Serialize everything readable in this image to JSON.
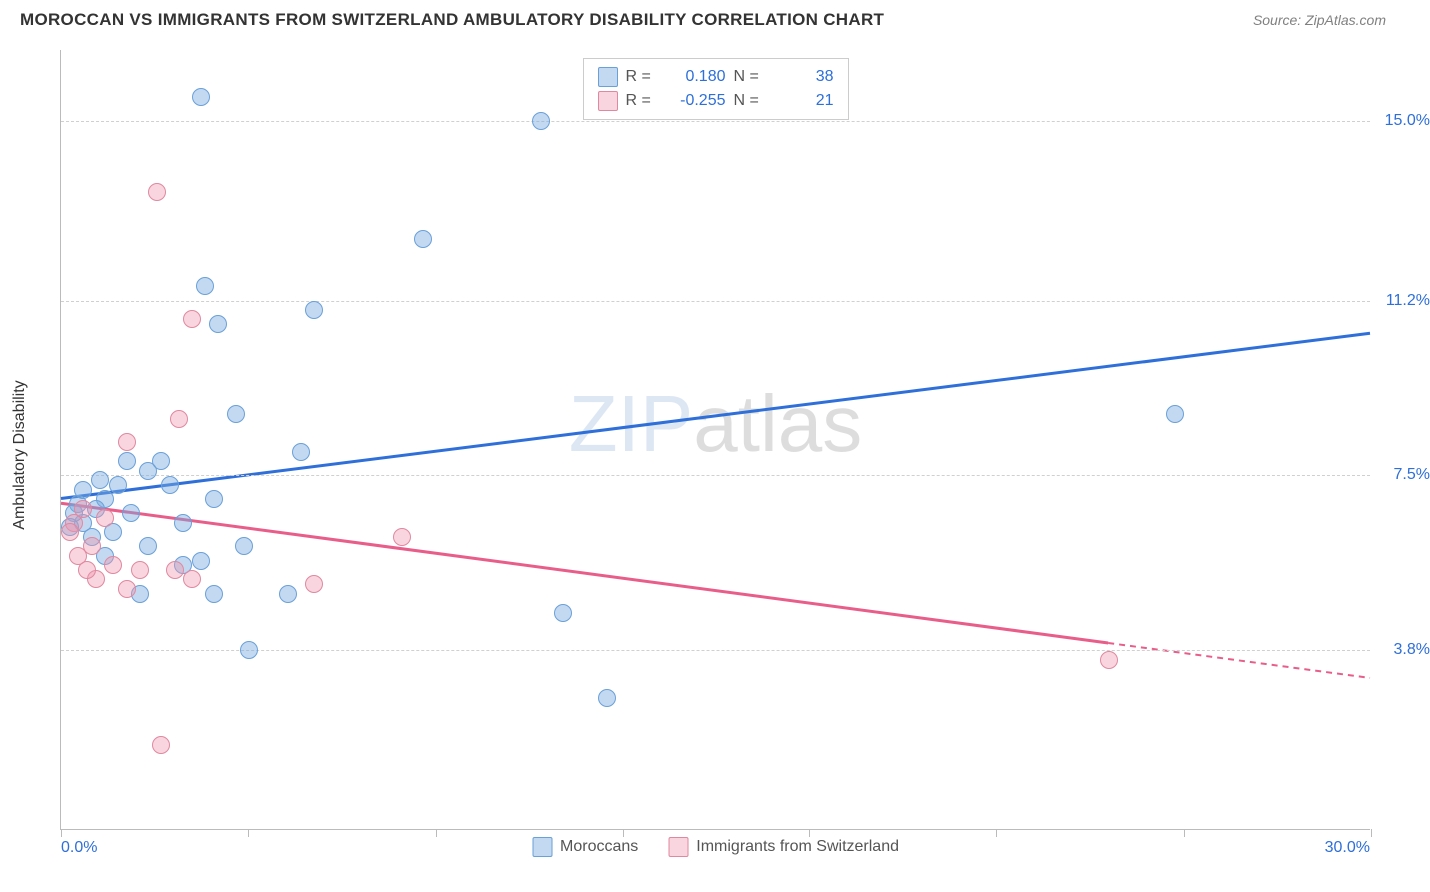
{
  "header": {
    "title": "MOROCCAN VS IMMIGRANTS FROM SWITZERLAND AMBULATORY DISABILITY CORRELATION CHART",
    "source": "Source: ZipAtlas.com"
  },
  "chart": {
    "type": "scatter",
    "y_axis_title": "Ambulatory Disability",
    "background_color": "#ffffff",
    "grid_color": "#d0d0d0",
    "axis_color": "#bbbbbb",
    "xlim": [
      0,
      30
    ],
    "ylim": [
      0,
      16.5
    ],
    "x_axis": {
      "min_label": "0.0%",
      "max_label": "30.0%",
      "label_color": "#2e6fd9",
      "tick_positions_pct": [
        0,
        14.3,
        28.6,
        42.9,
        57.1,
        71.4,
        85.7,
        100
      ]
    },
    "y_gridlines": [
      {
        "value": 15.0,
        "label": "15.0%",
        "color": "#2e6fd9"
      },
      {
        "value": 11.2,
        "label": "11.2%",
        "color": "#2e6fd9"
      },
      {
        "value": 7.5,
        "label": "7.5%",
        "color": "#2e6fd9"
      },
      {
        "value": 3.8,
        "label": "3.8%",
        "color": "#2e6fd9"
      }
    ],
    "series": [
      {
        "key": "moroccans",
        "label": "Moroccans",
        "fill_color": "rgba(120,170,225,0.45)",
        "stroke_color": "#6aa0d8",
        "line_color": "#2e6fd9",
        "marker_size": 18,
        "R": "0.180",
        "N": "38",
        "trend": {
          "x1": 0,
          "y1": 7.0,
          "x2": 30,
          "y2": 10.5,
          "solid_until_x": 30
        },
        "points": [
          {
            "x": 3.2,
            "y": 15.5
          },
          {
            "x": 11.0,
            "y": 15.0
          },
          {
            "x": 3.3,
            "y": 11.5
          },
          {
            "x": 3.6,
            "y": 10.7
          },
          {
            "x": 5.8,
            "y": 11.0
          },
          {
            "x": 8.3,
            "y": 12.5
          },
          {
            "x": 25.5,
            "y": 8.8
          },
          {
            "x": 4.0,
            "y": 8.8
          },
          {
            "x": 5.5,
            "y": 8.0
          },
          {
            "x": 1.5,
            "y": 7.8
          },
          {
            "x": 2.3,
            "y": 7.8
          },
          {
            "x": 2.0,
            "y": 7.6
          },
          {
            "x": 1.0,
            "y": 7.0
          },
          {
            "x": 3.5,
            "y": 7.0
          },
          {
            "x": 0.8,
            "y": 6.8
          },
          {
            "x": 0.5,
            "y": 6.5
          },
          {
            "x": 0.4,
            "y": 6.9
          },
          {
            "x": 1.2,
            "y": 6.3
          },
          {
            "x": 2.0,
            "y": 6.0
          },
          {
            "x": 3.2,
            "y": 5.7
          },
          {
            "x": 4.2,
            "y": 6.0
          },
          {
            "x": 1.8,
            "y": 5.0
          },
          {
            "x": 2.8,
            "y": 5.6
          },
          {
            "x": 3.5,
            "y": 5.0
          },
          {
            "x": 5.2,
            "y": 5.0
          },
          {
            "x": 11.5,
            "y": 4.6
          },
          {
            "x": 4.3,
            "y": 3.8
          },
          {
            "x": 12.5,
            "y": 2.8
          },
          {
            "x": 0.3,
            "y": 6.7
          },
          {
            "x": 0.5,
            "y": 7.2
          },
          {
            "x": 0.7,
            "y": 6.2
          },
          {
            "x": 1.3,
            "y": 7.3
          },
          {
            "x": 2.5,
            "y": 7.3
          },
          {
            "x": 0.2,
            "y": 6.4
          },
          {
            "x": 2.8,
            "y": 6.5
          },
          {
            "x": 0.9,
            "y": 7.4
          },
          {
            "x": 1.6,
            "y": 6.7
          },
          {
            "x": 1.0,
            "y": 5.8
          }
        ]
      },
      {
        "key": "swiss",
        "label": "Immigrants from Switzerland",
        "fill_color": "rgba(240,150,175,0.40)",
        "stroke_color": "#e088a0",
        "line_color": "#e85d8a",
        "marker_size": 18,
        "R": "-0.255",
        "N": "21",
        "trend": {
          "x1": 0,
          "y1": 6.9,
          "x2": 30,
          "y2": 3.2,
          "solid_until_x": 24
        },
        "points": [
          {
            "x": 2.2,
            "y": 13.5
          },
          {
            "x": 3.0,
            "y": 10.8
          },
          {
            "x": 2.7,
            "y": 8.7
          },
          {
            "x": 1.5,
            "y": 8.2
          },
          {
            "x": 0.3,
            "y": 6.5
          },
          {
            "x": 0.5,
            "y": 6.8
          },
          {
            "x": 0.7,
            "y": 6.0
          },
          {
            "x": 0.4,
            "y": 5.8
          },
          {
            "x": 1.2,
            "y": 5.6
          },
          {
            "x": 1.8,
            "y": 5.5
          },
          {
            "x": 2.6,
            "y": 5.5
          },
          {
            "x": 3.0,
            "y": 5.3
          },
          {
            "x": 7.8,
            "y": 6.2
          },
          {
            "x": 5.8,
            "y": 5.2
          },
          {
            "x": 0.8,
            "y": 5.3
          },
          {
            "x": 1.5,
            "y": 5.1
          },
          {
            "x": 2.3,
            "y": 1.8
          },
          {
            "x": 24.0,
            "y": 3.6
          },
          {
            "x": 0.2,
            "y": 6.3
          },
          {
            "x": 0.6,
            "y": 5.5
          },
          {
            "x": 1.0,
            "y": 6.6
          }
        ]
      }
    ],
    "legend_top": {
      "stat_labels": {
        "R": "R =",
        "N": "N ="
      },
      "value_color": "#2e6fd9"
    },
    "watermark": {
      "part1": "ZIP",
      "part2": "atlas"
    }
  }
}
